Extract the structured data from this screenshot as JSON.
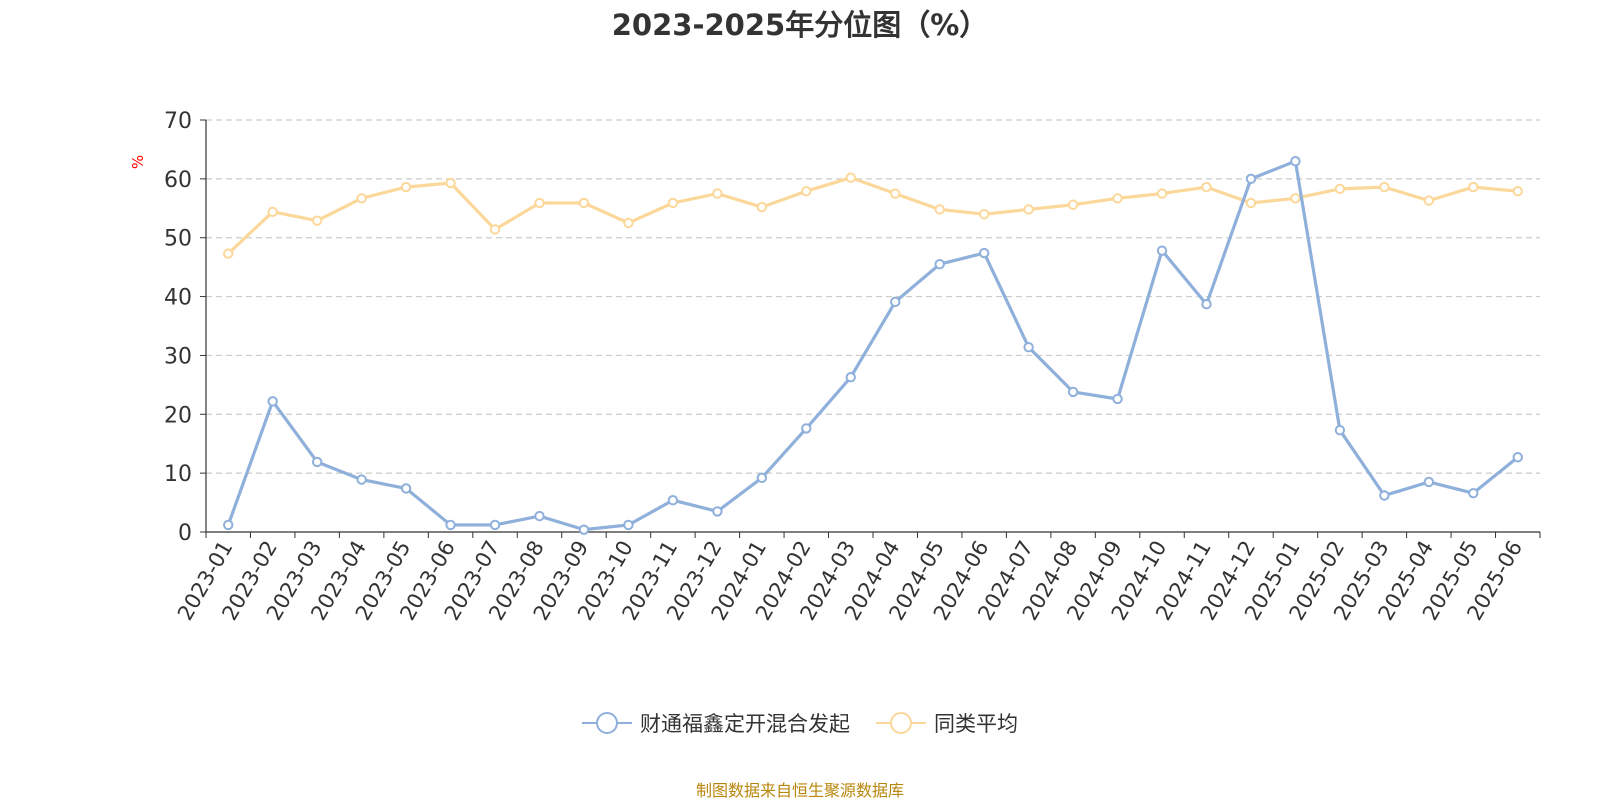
{
  "chart_data": {
    "type": "line",
    "title": "2023-2025年分位图（%）",
    "ylabel": "%",
    "ylim": [
      0,
      70
    ],
    "yticks": [
      0,
      10,
      20,
      30,
      40,
      50,
      60,
      70
    ],
    "grid": true,
    "legend_position": "bottom",
    "categories": [
      "2023-01",
      "2023-02",
      "2023-03",
      "2023-04",
      "2023-05",
      "2023-06",
      "2023-07",
      "2023-08",
      "2023-09",
      "2023-10",
      "2023-11",
      "2023-12",
      "2024-01",
      "2024-02",
      "2024-03",
      "2024-04",
      "2024-05",
      "2024-06",
      "2024-07",
      "2024-08",
      "2024-09",
      "2024-10",
      "2024-11",
      "2024-12",
      "2025-01",
      "2025-02",
      "2025-03",
      "2025-04",
      "2025-05",
      "2025-06"
    ],
    "series": [
      {
        "name": "财通福鑫定开混合发起",
        "color": "#8eb0da",
        "values": [
          1.2,
          22.2,
          11.9,
          8.9,
          7.4,
          1.2,
          1.2,
          2.7,
          0.4,
          1.2,
          5.4,
          3.5,
          9.2,
          17.6,
          26.3,
          39.1,
          45.5,
          47.4,
          31.4,
          23.8,
          22.6,
          47.8,
          38.7,
          60.0,
          63.0,
          17.3,
          6.2,
          8.5,
          6.6,
          12.7
        ]
      },
      {
        "name": "同类平均",
        "color": "#fbd89a",
        "values": [
          47.3,
          54.4,
          52.9,
          56.7,
          58.6,
          59.3,
          51.4,
          55.9,
          55.9,
          52.5,
          55.9,
          57.5,
          55.2,
          57.9,
          60.2,
          57.5,
          54.8,
          54.0,
          54.8,
          55.6,
          56.7,
          57.5,
          58.6,
          55.9,
          56.7,
          58.3,
          58.6,
          56.3,
          58.6,
          57.9
        ]
      }
    ],
    "source": "制图数据来自恒生聚源数据库"
  }
}
